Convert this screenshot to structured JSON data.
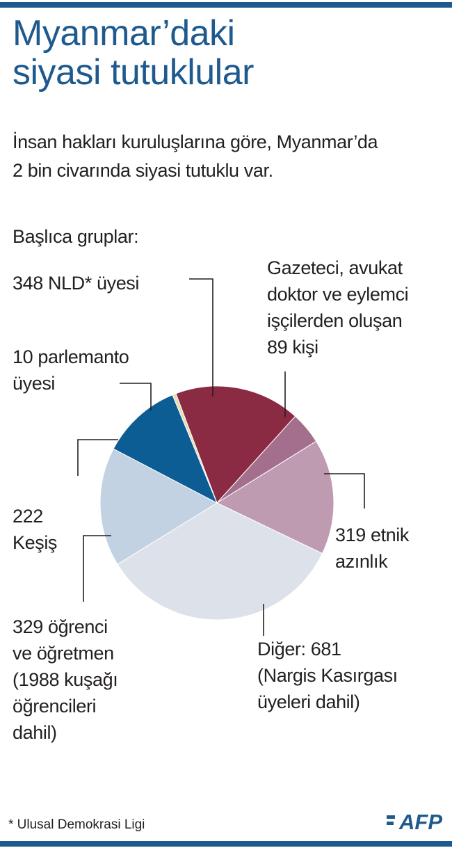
{
  "title_lines": [
    "Myanmar’daki",
    "siyasi tutuklular"
  ],
  "subtitle_lines": [
    "İnsan hakları kuruluşlarına göre, Myanmar’da",
    "2 bin civarında siyasi tutuklu var."
  ],
  "groups_heading": "Başlıca gruplar:",
  "labels": {
    "nld": [
      "348 NLD* üyesi"
    ],
    "parliament": [
      "10 parlemanto",
      "üyesi"
    ],
    "journalists": [
      "Gazeteci, avukat",
      "doktor ve eylemci",
      "işçilerden oluşan",
      "89 kişi"
    ],
    "monks": [
      "222",
      "Keşiş"
    ],
    "ethnic": [
      "319 etnik",
      "azınlık"
    ],
    "students": [
      "329 öğrenci",
      "ve öğretmen",
      "(1988 kuşağı",
      "öğrencileri",
      "dahil)"
    ],
    "other": [
      "Diğer: 681",
      "(Nargis Kasırgası",
      "üyeleri dahil)"
    ]
  },
  "footnote": "*  Ulusal Demokrasi Ligi",
  "logo_text": "AFP",
  "colors": {
    "accent_blue": "#1e5a8e",
    "text": "#231f20"
  },
  "chart_data": {
    "type": "pie",
    "unit": "kişi",
    "slices": [
      {
        "label": "348 NLD* üyesi",
        "value": 348,
        "color": "#8a2b43"
      },
      {
        "label": "Gazeteci, avukat doktor ve eylemci işçilerden oluşan 89 kişi",
        "value": 89,
        "color": "#a46f8d"
      },
      {
        "label": "319 etnik azınlık",
        "value": 319,
        "color": "#bf9bb2"
      },
      {
        "label": "Diğer: 681 (Nargis Kasırgası üyeleri dahil)",
        "value": 681,
        "color": "#dde1e9"
      },
      {
        "label": "329 öğrenci ve öğretmen (1988 kuşağı öğrencileri dahil)",
        "value": 329,
        "color": "#c2d2e2"
      },
      {
        "label": "222 Keşiş",
        "value": 222,
        "color": "#0d5d95"
      },
      {
        "label": "10 parlemanto üyesi",
        "value": 10,
        "color": "#e7dcb1"
      }
    ]
  }
}
